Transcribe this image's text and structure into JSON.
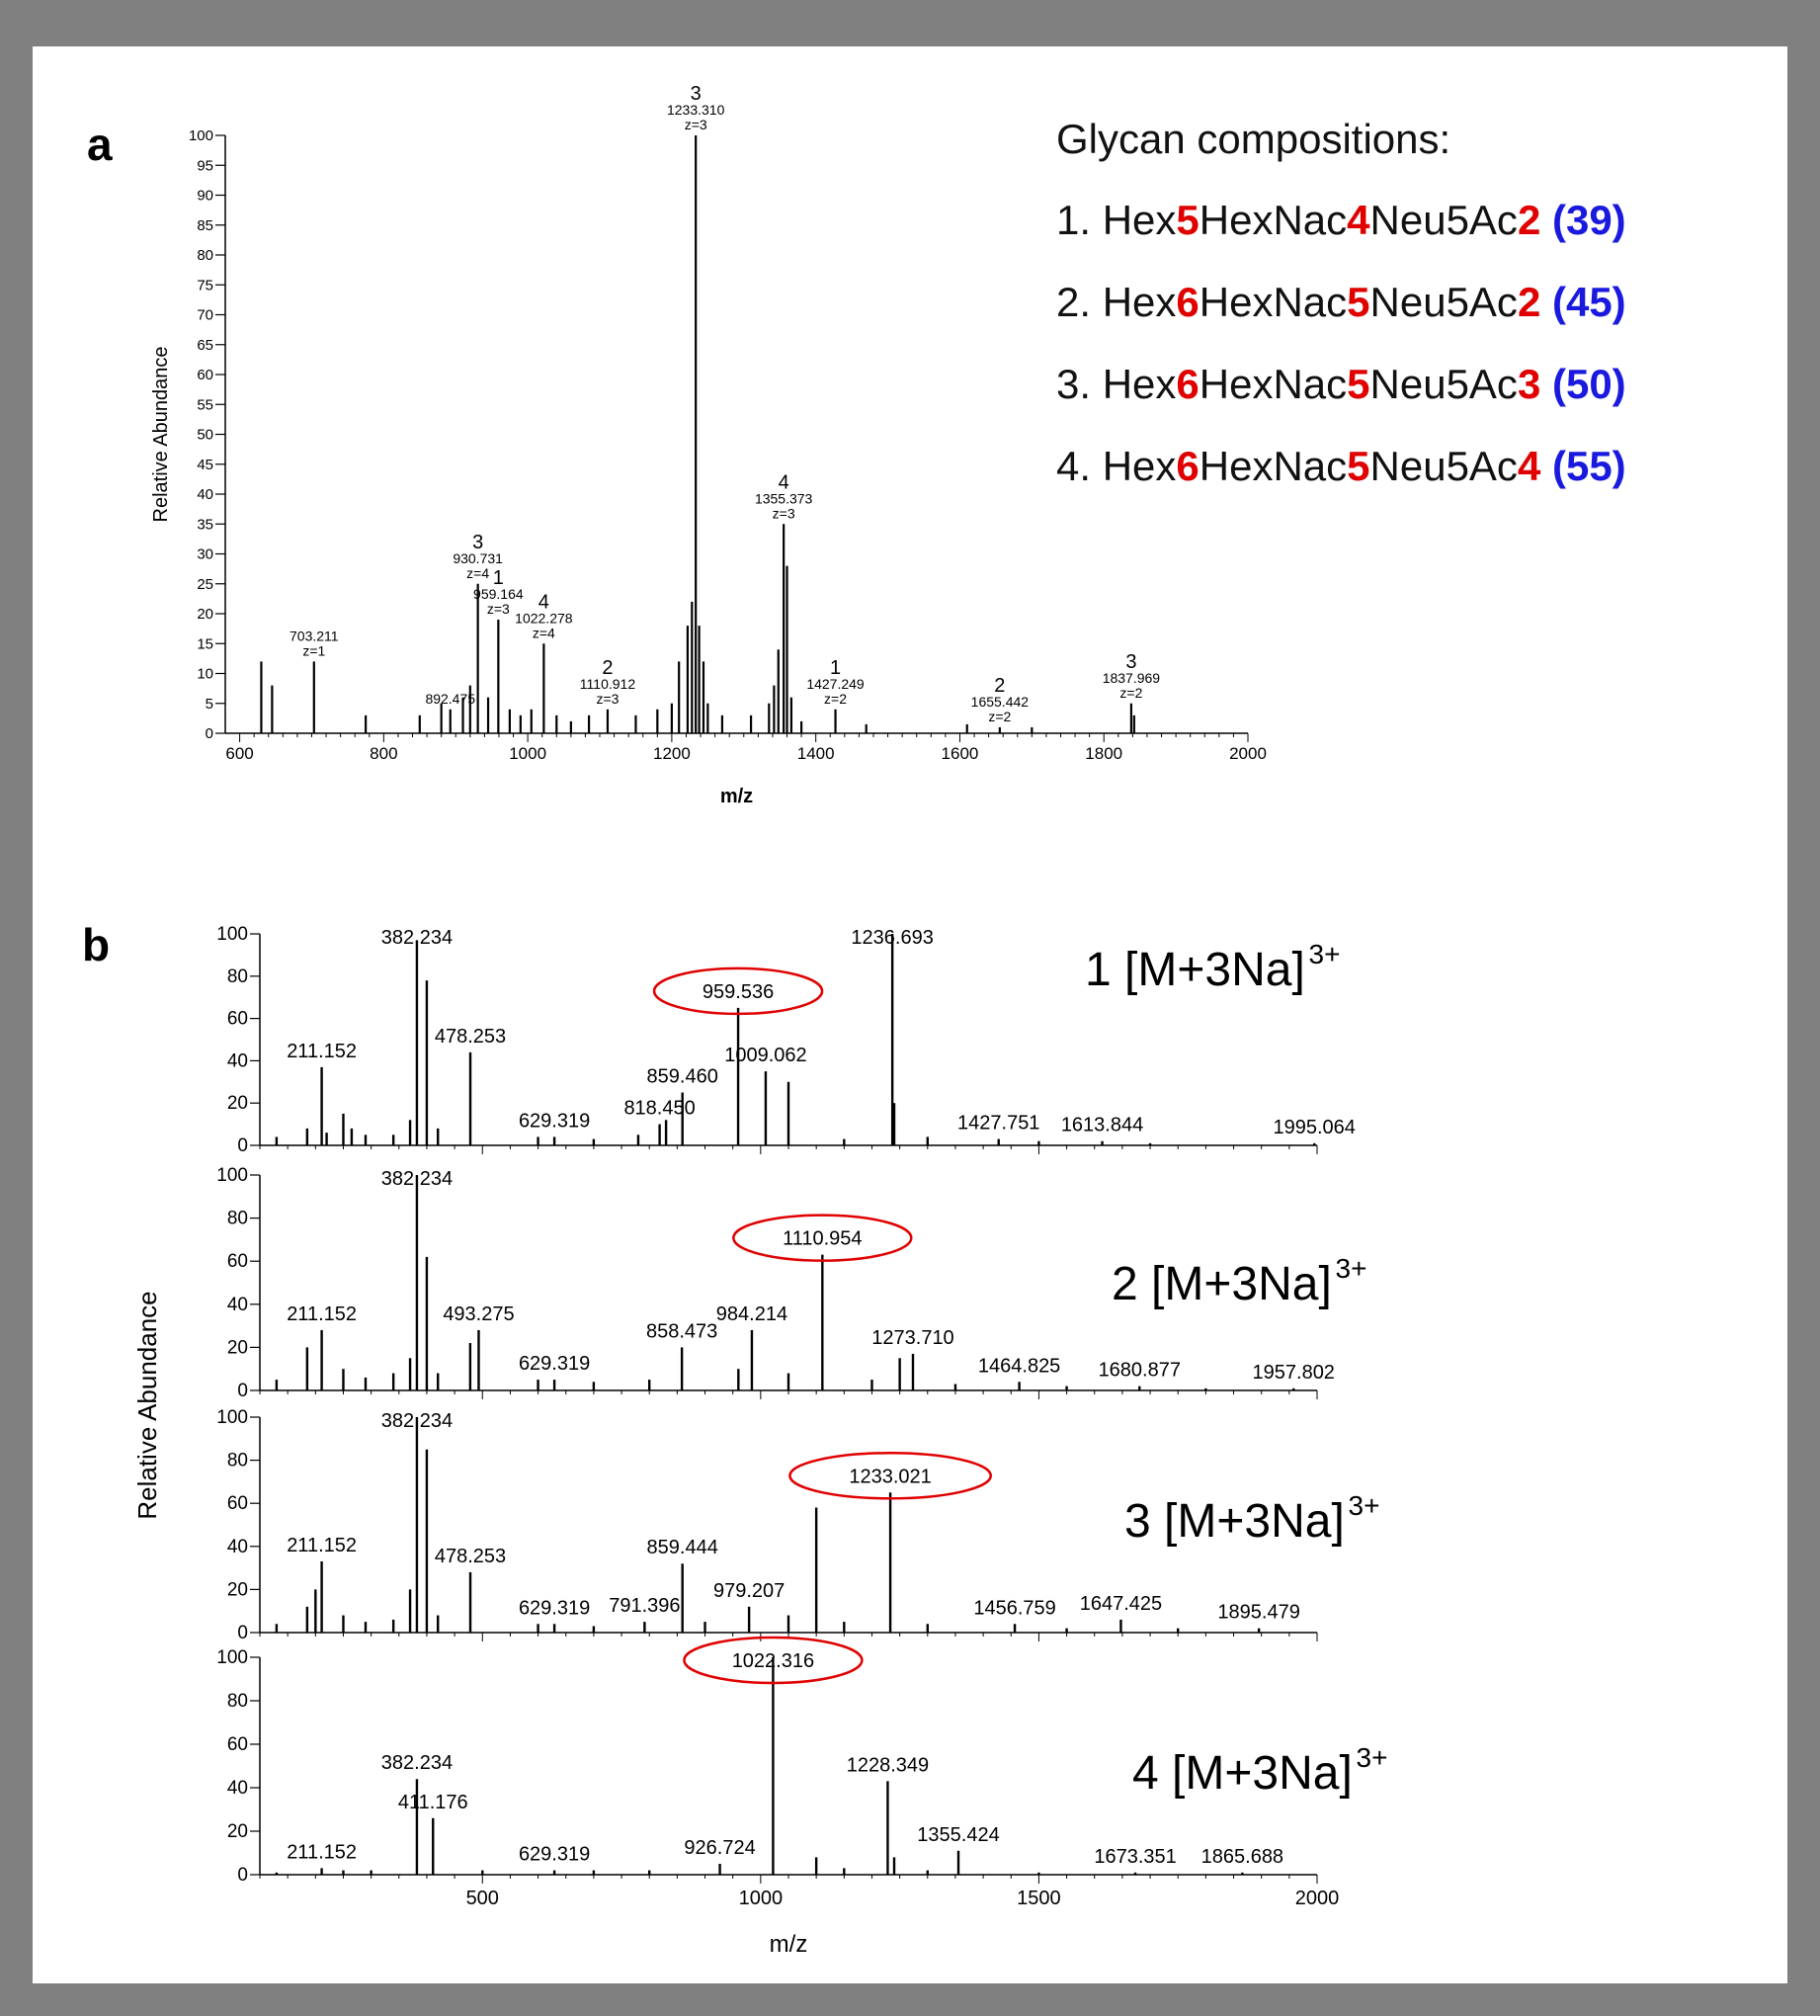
{
  "header": {
    "title": ""
  },
  "panel_a": {
    "letter": "a",
    "compositions_title": "Glycan compositions:",
    "compositions": [
      {
        "num": "1.",
        "parts": [
          "Hex",
          "5",
          "HexNac",
          "4",
          "Neu5Ac",
          "2",
          "(39)"
        ]
      },
      {
        "num": "2.",
        "parts": [
          "Hex",
          "6",
          "HexNac",
          "5",
          "Neu5Ac",
          "2",
          "(45)"
        ]
      },
      {
        "num": "3.",
        "parts": [
          "Hex",
          "6",
          "HexNac",
          "5",
          "Neu5Ac",
          "3",
          "(50)"
        ]
      },
      {
        "num": "4.",
        "parts": [
          "Hex",
          "6",
          "HexNac",
          "5",
          "Neu5Ac",
          "4",
          "(55)"
        ]
      }
    ]
  },
  "panel_b": {
    "letter": "b"
  },
  "colors": {
    "accent_red": "#e00000",
    "accent_blue": "#1a1adf",
    "frame": "#808080"
  },
  "chart_data": [
    {
      "type": "bar",
      "id": "a",
      "xlabel": "m/z",
      "ylabel": "Relative Abundance",
      "xlim": [
        580,
        2000
      ],
      "ylim": [
        0,
        100
      ],
      "xticks": [
        600,
        800,
        1000,
        1200,
        1400,
        1600,
        1800,
        2000
      ],
      "yticks": [
        0,
        5,
        10,
        15,
        20,
        25,
        30,
        35,
        40,
        45,
        50,
        55,
        60,
        65,
        70,
        75,
        80,
        85,
        90,
        95,
        100
      ],
      "peaks": [
        [
          630,
          12
        ],
        [
          645,
          8
        ],
        [
          703.211,
          12
        ],
        [
          775,
          3
        ],
        [
          850,
          3
        ],
        [
          880,
          5
        ],
        [
          892.475,
          4
        ],
        [
          910,
          6
        ],
        [
          920,
          8
        ],
        [
          930.731,
          25
        ],
        [
          945,
          6
        ],
        [
          959.164,
          19
        ],
        [
          975,
          4
        ],
        [
          990,
          3
        ],
        [
          1005,
          4
        ],
        [
          1022.278,
          15
        ],
        [
          1040,
          3
        ],
        [
          1060,
          2
        ],
        [
          1085,
          3
        ],
        [
          1110.912,
          4
        ],
        [
          1150,
          3
        ],
        [
          1180,
          4
        ],
        [
          1200,
          5
        ],
        [
          1210,
          12
        ],
        [
          1222,
          18
        ],
        [
          1228,
          22
        ],
        [
          1233.31,
          100
        ],
        [
          1238,
          18
        ],
        [
          1244,
          12
        ],
        [
          1250,
          5
        ],
        [
          1270,
          3
        ],
        [
          1310,
          3
        ],
        [
          1335,
          5
        ],
        [
          1342,
          8
        ],
        [
          1348,
          14
        ],
        [
          1355.373,
          35
        ],
        [
          1360,
          28
        ],
        [
          1366,
          6
        ],
        [
          1380,
          2
        ],
        [
          1427.249,
          4
        ],
        [
          1470,
          1.5
        ],
        [
          1610,
          1.5
        ],
        [
          1655.442,
          1
        ],
        [
          1700,
          1
        ],
        [
          1837.969,
          5
        ],
        [
          1842,
          3
        ]
      ],
      "labels": [
        {
          "x": 703.211,
          "lines": [
            "703.211",
            "z=1"
          ]
        },
        {
          "x": 892.475,
          "lines": [
            "892.475"
          ]
        },
        {
          "x": 930.731,
          "lines": [
            "3",
            "930.731",
            "z=4"
          ]
        },
        {
          "x": 959.164,
          "lines": [
            "1",
            "959.164",
            "z=3"
          ]
        },
        {
          "x": 1022.278,
          "lines": [
            "4",
            "1022.278",
            "z=4"
          ]
        },
        {
          "x": 1110.912,
          "lines": [
            "2",
            "1110.912",
            "z=3"
          ]
        },
        {
          "x": 1233.31,
          "lines": [
            "3",
            "1233.310",
            "z=3"
          ]
        },
        {
          "x": 1355.373,
          "lines": [
            "4",
            "1355.373",
            "z=3"
          ]
        },
        {
          "x": 1427.249,
          "lines": [
            "1",
            "1427.249",
            "z=2"
          ]
        },
        {
          "x": 1655.442,
          "lines": [
            "2",
            "1655.442",
            "z=2"
          ]
        },
        {
          "x": 1837.969,
          "lines": [
            "3",
            "1837.969",
            "z=2"
          ]
        }
      ]
    },
    {
      "type": "bar",
      "id": "b",
      "xlabel": "m/z",
      "ylabel": "Relative Abundance",
      "xlim": [
        100,
        2000
      ],
      "ylim": [
        0,
        100
      ],
      "xticks": [
        500,
        1000,
        1500,
        2000
      ],
      "yticks": [
        0,
        20,
        40,
        60,
        80,
        100
      ],
      "spectra": [
        {
          "title": "1 [M+3Na]",
          "charge": "3+",
          "peaks": [
            [
              130,
              4
            ],
            [
              185,
              8
            ],
            [
              211.152,
              37
            ],
            [
              220,
              6
            ],
            [
              250,
              15
            ],
            [
              265,
              8
            ],
            [
              290,
              5
            ],
            [
              340,
              5
            ],
            [
              370,
              12
            ],
            [
              382.234,
              97
            ],
            [
              400,
              78
            ],
            [
              420,
              8
            ],
            [
              478.253,
              44
            ],
            [
              600,
              4
            ],
            [
              629.319,
              4
            ],
            [
              700,
              3
            ],
            [
              780,
              5
            ],
            [
              818.45,
              10
            ],
            [
              830,
              12
            ],
            [
              859.46,
              25
            ],
            [
              959.536,
              65
            ],
            [
              1009.062,
              35
            ],
            [
              1050,
              30
            ],
            [
              1150,
              3
            ],
            [
              1236.693,
              100
            ],
            [
              1240,
              20
            ],
            [
              1300,
              4
            ],
            [
              1427.751,
              3
            ],
            [
              1500,
              2
            ],
            [
              1613.844,
              2
            ],
            [
              1700,
              1
            ],
            [
              1995.064,
              1
            ]
          ],
          "labels": [
            {
              "x": 211.152,
              "text": "211.152"
            },
            {
              "x": 382.234,
              "text": "382.234"
            },
            {
              "x": 478.253,
              "text": "478.253"
            },
            {
              "x": 629.319,
              "text": "629.319"
            },
            {
              "x": 818.45,
              "text": "818.450"
            },
            {
              "x": 859.46,
              "text": "859.460"
            },
            {
              "x": 959.536,
              "text": "959.536",
              "circled": true
            },
            {
              "x": 1009.062,
              "text": "1009.062"
            },
            {
              "x": 1236.693,
              "text": "1236.693"
            },
            {
              "x": 1427.751,
              "text": "1427.751"
            },
            {
              "x": 1613.844,
              "text": "1613.844"
            },
            {
              "x": 1995.064,
              "text": "1995.064"
            }
          ]
        },
        {
          "title": "2 [M+3Na]",
          "charge": "3+",
          "peaks": [
            [
              130,
              5
            ],
            [
              185,
              20
            ],
            [
              211.152,
              28
            ],
            [
              250,
              10
            ],
            [
              290,
              6
            ],
            [
              340,
              8
            ],
            [
              370,
              15
            ],
            [
              382.234,
              100
            ],
            [
              400,
              62
            ],
            [
              420,
              8
            ],
            [
              478,
              22
            ],
            [
              493.275,
              28
            ],
            [
              600,
              5
            ],
            [
              629.319,
              5
            ],
            [
              700,
              4
            ],
            [
              800,
              5
            ],
            [
              858.473,
              20
            ],
            [
              960,
              10
            ],
            [
              984.214,
              28
            ],
            [
              1050,
              8
            ],
            [
              1110.954,
              63
            ],
            [
              1200,
              5
            ],
            [
              1250,
              15
            ],
            [
              1273.71,
              17
            ],
            [
              1350,
              3
            ],
            [
              1464.825,
              4
            ],
            [
              1550,
              2
            ],
            [
              1680.877,
              2
            ],
            [
              1800,
              1
            ],
            [
              1957.802,
              1
            ]
          ],
          "labels": [
            {
              "x": 211.152,
              "text": "211.152"
            },
            {
              "x": 382.234,
              "text": "382.234"
            },
            {
              "x": 493.275,
              "text": "493.275"
            },
            {
              "x": 629.319,
              "text": "629.319"
            },
            {
              "x": 858.473,
              "text": "858.473"
            },
            {
              "x": 984.214,
              "text": "984.214"
            },
            {
              "x": 1110.954,
              "text": "1110.954",
              "circled": true
            },
            {
              "x": 1273.71,
              "text": "1273.710"
            },
            {
              "x": 1464.825,
              "text": "1464.825"
            },
            {
              "x": 1680.877,
              "text": "1680.877"
            },
            {
              "x": 1957.802,
              "text": "1957.802"
            }
          ]
        },
        {
          "title": "3 [M+3Na]",
          "charge": "3+",
          "peaks": [
            [
              130,
              4
            ],
            [
              185,
              12
            ],
            [
              200,
              20
            ],
            [
              211.152,
              33
            ],
            [
              250,
              8
            ],
            [
              290,
              5
            ],
            [
              340,
              6
            ],
            [
              370,
              20
            ],
            [
              382.234,
              100
            ],
            [
              400,
              85
            ],
            [
              420,
              8
            ],
            [
              478.253,
              28
            ],
            [
              600,
              4
            ],
            [
              629.319,
              4
            ],
            [
              700,
              3
            ],
            [
              791.396,
              5
            ],
            [
              859.444,
              32
            ],
            [
              900,
              5
            ],
            [
              979.207,
              12
            ],
            [
              1050,
              8
            ],
            [
              1100,
              58
            ],
            [
              1150,
              5
            ],
            [
              1233.021,
              65
            ],
            [
              1300,
              4
            ],
            [
              1456.759,
              4
            ],
            [
              1550,
              2
            ],
            [
              1647.425,
              6
            ],
            [
              1750,
              2
            ],
            [
              1895.479,
              2
            ]
          ],
          "labels": [
            {
              "x": 211.152,
              "text": "211.152"
            },
            {
              "x": 382.234,
              "text": "382.234"
            },
            {
              "x": 478.253,
              "text": "478.253"
            },
            {
              "x": 629.319,
              "text": "629.319"
            },
            {
              "x": 791.396,
              "text": "791.396"
            },
            {
              "x": 859.444,
              "text": "859.444"
            },
            {
              "x": 979.207,
              "text": "979.207"
            },
            {
              "x": 1233.021,
              "text": "1233.021",
              "circled": true
            },
            {
              "x": 1456.759,
              "text": "1456.759"
            },
            {
              "x": 1647.425,
              "text": "1647.425"
            },
            {
              "x": 1895.479,
              "text": "1895.479"
            }
          ]
        },
        {
          "title": "4 [M+3Na]",
          "charge": "3+",
          "peaks": [
            [
              130,
              1
            ],
            [
              211.152,
              3
            ],
            [
              250,
              2
            ],
            [
              300,
              2
            ],
            [
              382.234,
              44
            ],
            [
              411.176,
              26
            ],
            [
              500,
              2
            ],
            [
              629.319,
              2
            ],
            [
              700,
              2
            ],
            [
              800,
              2
            ],
            [
              926.724,
              5
            ],
            [
              1022.316,
              100
            ],
            [
              1100,
              8
            ],
            [
              1150,
              3
            ],
            [
              1228.349,
              43
            ],
            [
              1240,
              8
            ],
            [
              1300,
              2
            ],
            [
              1355.424,
              11
            ],
            [
              1500,
              1
            ],
            [
              1673.351,
              1
            ],
            [
              1865.688,
              1
            ]
          ],
          "labels": [
            {
              "x": 211.152,
              "text": "211.152"
            },
            {
              "x": 382.234,
              "text": "382.234"
            },
            {
              "x": 411.176,
              "text": "411.176"
            },
            {
              "x": 629.319,
              "text": "629.319"
            },
            {
              "x": 926.724,
              "text": "926.724"
            },
            {
              "x": 1022.316,
              "text": "1022.316",
              "circled": true
            },
            {
              "x": 1228.349,
              "text": "1228.349"
            },
            {
              "x": 1355.424,
              "text": "1355.424"
            },
            {
              "x": 1673.351,
              "text": "1673.351"
            },
            {
              "x": 1865.688,
              "text": "1865.688"
            }
          ]
        }
      ]
    }
  ]
}
